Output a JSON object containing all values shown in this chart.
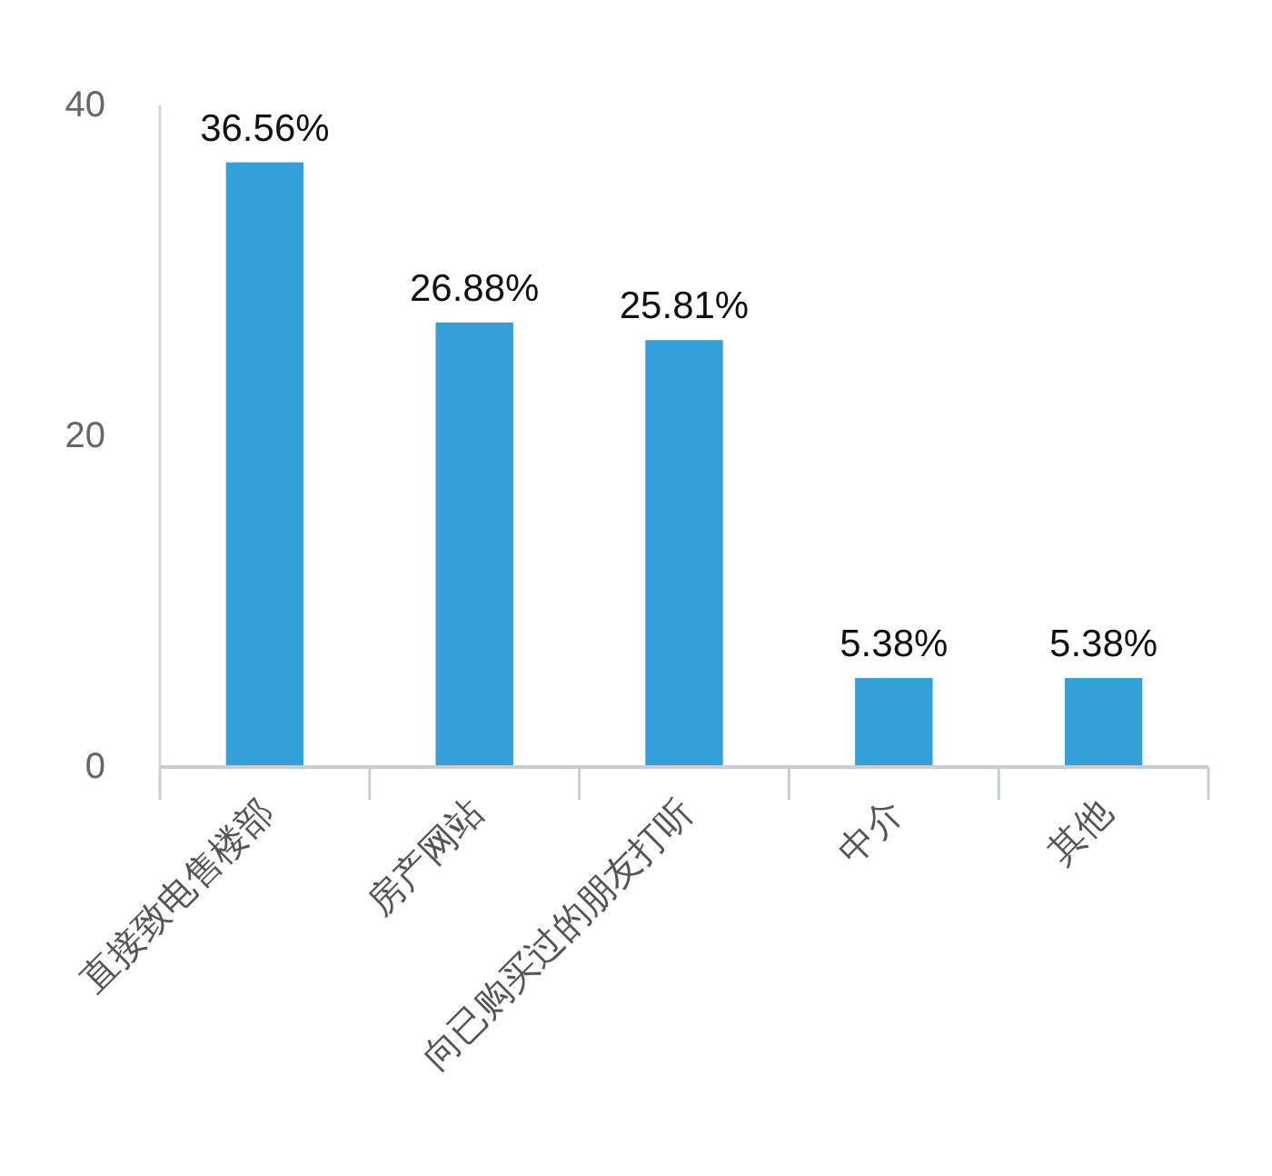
{
  "chart_data": {
    "type": "bar",
    "categories": [
      "直接致电售楼部",
      "房产网站",
      "向已购买过的朋友打听",
      "中介",
      "其他"
    ],
    "values": [
      36.56,
      26.88,
      25.81,
      5.38,
      5.38
    ],
    "value_labels": [
      "36.56%",
      "26.88%",
      "25.81%",
      "5.38%",
      "5.38%"
    ],
    "color": "#34a0d9",
    "ylim": [
      0,
      40
    ],
    "yticks": [
      0,
      20,
      40
    ],
    "grid": false
  }
}
